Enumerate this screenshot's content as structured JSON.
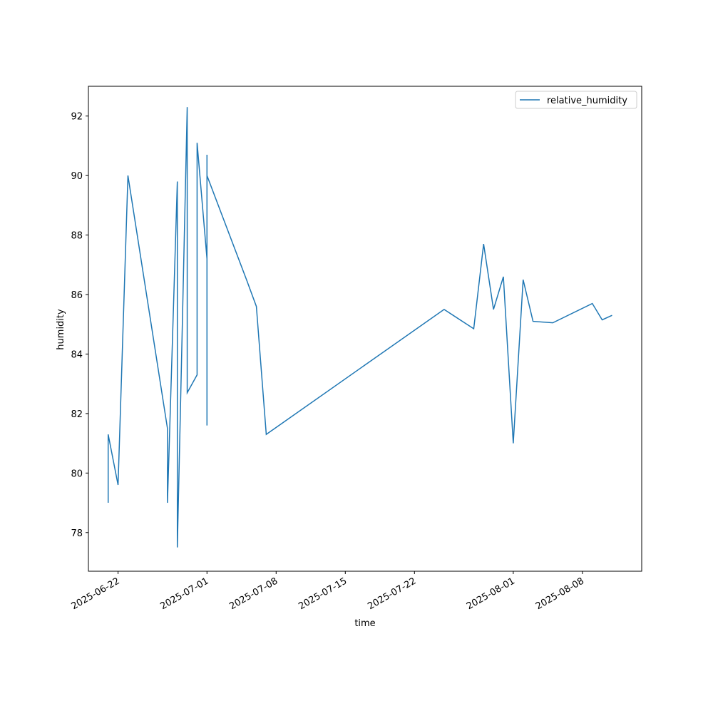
{
  "chart_data": {
    "type": "line",
    "x_label": "time",
    "y_label": "humidity",
    "x": [
      "2025-06-21",
      "2025-06-21",
      "2025-06-22",
      "2025-06-23",
      "2025-06-27",
      "2025-06-27",
      "2025-06-28",
      "2025-06-28",
      "2025-06-29",
      "2025-06-29",
      "2025-06-30",
      "2025-06-30",
      "2025-07-01",
      "2025-07-01",
      "2025-07-01",
      "2025-07-01",
      "2025-07-05",
      "2025-07-06",
      "2025-07-07",
      "2025-07-25",
      "2025-07-28",
      "2025-07-29",
      "2025-07-30",
      "2025-07-31",
      "2025-08-01",
      "2025-08-02",
      "2025-08-03",
      "2025-08-05",
      "2025-08-09",
      "2025-08-10",
      "2025-08-11"
    ],
    "series": [
      {
        "name": "relative_humidity",
        "color": "#1f77b4",
        "values": [
          79.0,
          81.3,
          79.6,
          90.0,
          81.5,
          79.0,
          89.8,
          77.5,
          92.3,
          82.7,
          83.3,
          91.1,
          87.2,
          81.6,
          90.7,
          90.0,
          86.5,
          85.6,
          81.3,
          85.5,
          84.85,
          87.7,
          85.5,
          86.6,
          81.0,
          86.5,
          85.1,
          85.05,
          85.7,
          85.15,
          85.3
        ]
      }
    ],
    "xlim": [
      "2025-06-19",
      "2025-08-14"
    ],
    "xticks": [
      "2025-06-22",
      "2025-07-01",
      "2025-07-08",
      "2025-07-15",
      "2025-07-22",
      "2025-08-01",
      "2025-08-08"
    ],
    "ylim": [
      76.7,
      93.0
    ],
    "yticks": [
      78,
      80,
      82,
      84,
      86,
      88,
      90,
      92
    ],
    "legend": "upper right"
  }
}
